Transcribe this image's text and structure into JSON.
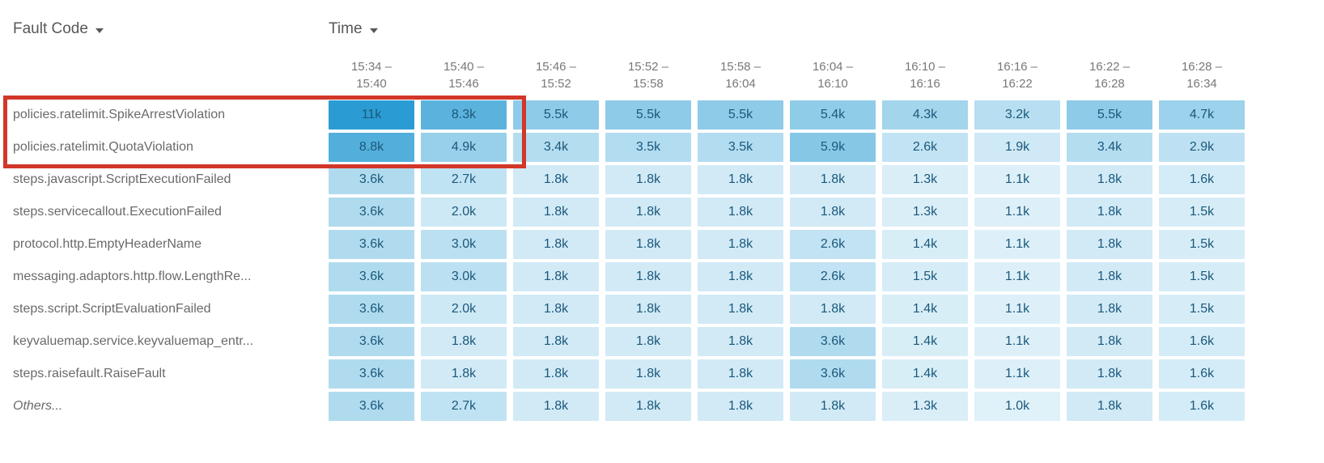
{
  "controls": {
    "row_dimension_label": "Fault Code",
    "column_dimension_label": "Time"
  },
  "chart_data": {
    "type": "heatmap",
    "x_label": "Time",
    "y_label": "Fault Code",
    "legend_position": "none",
    "columns": [
      {
        "line1": "15:34 –",
        "line2": "15:40"
      },
      {
        "line1": "15:40 –",
        "line2": "15:46"
      },
      {
        "line1": "15:46 –",
        "line2": "15:52"
      },
      {
        "line1": "15:52 –",
        "line2": "15:58"
      },
      {
        "line1": "15:58 –",
        "line2": "16:04"
      },
      {
        "line1": "16:04 –",
        "line2": "16:10"
      },
      {
        "line1": "16:10 –",
        "line2": "16:16"
      },
      {
        "line1": "16:16 –",
        "line2": "16:22"
      },
      {
        "line1": "16:22 –",
        "line2": "16:28"
      },
      {
        "line1": "16:28 –",
        "line2": "16:34"
      }
    ],
    "rows": [
      {
        "label": "policies.ratelimit.SpikeArrestViolation",
        "italic": false,
        "display": [
          "11k",
          "8.3k",
          "5.5k",
          "5.5k",
          "5.5k",
          "5.4k",
          "4.3k",
          "3.2k",
          "5.5k",
          "4.7k"
        ],
        "values_k": [
          11,
          8.3,
          5.5,
          5.5,
          5.5,
          5.4,
          4.3,
          3.2,
          5.5,
          4.7
        ]
      },
      {
        "label": "policies.ratelimit.QuotaViolation",
        "italic": false,
        "display": [
          "8.8k",
          "4.9k",
          "3.4k",
          "3.5k",
          "3.5k",
          "5.9k",
          "2.6k",
          "1.9k",
          "3.4k",
          "2.9k"
        ],
        "values_k": [
          8.8,
          4.9,
          3.4,
          3.5,
          3.5,
          5.9,
          2.6,
          1.9,
          3.4,
          2.9
        ]
      },
      {
        "label": "steps.javascript.ScriptExecutionFailed",
        "italic": false,
        "display": [
          "3.6k",
          "2.7k",
          "1.8k",
          "1.8k",
          "1.8k",
          "1.8k",
          "1.3k",
          "1.1k",
          "1.8k",
          "1.6k"
        ],
        "values_k": [
          3.6,
          2.7,
          1.8,
          1.8,
          1.8,
          1.8,
          1.3,
          1.1,
          1.8,
          1.6
        ]
      },
      {
        "label": "steps.servicecallout.ExecutionFailed",
        "italic": false,
        "display": [
          "3.6k",
          "2.0k",
          "1.8k",
          "1.8k",
          "1.8k",
          "1.8k",
          "1.3k",
          "1.1k",
          "1.8k",
          "1.5k"
        ],
        "values_k": [
          3.6,
          2.0,
          1.8,
          1.8,
          1.8,
          1.8,
          1.3,
          1.1,
          1.8,
          1.5
        ]
      },
      {
        "label": "protocol.http.EmptyHeaderName",
        "italic": false,
        "display": [
          "3.6k",
          "3.0k",
          "1.8k",
          "1.8k",
          "1.8k",
          "2.6k",
          "1.4k",
          "1.1k",
          "1.8k",
          "1.5k"
        ],
        "values_k": [
          3.6,
          3.0,
          1.8,
          1.8,
          1.8,
          2.6,
          1.4,
          1.1,
          1.8,
          1.5
        ]
      },
      {
        "label": "messaging.adaptors.http.flow.LengthRe...",
        "italic": false,
        "display": [
          "3.6k",
          "3.0k",
          "1.8k",
          "1.8k",
          "1.8k",
          "2.6k",
          "1.5k",
          "1.1k",
          "1.8k",
          "1.5k"
        ],
        "values_k": [
          3.6,
          3.0,
          1.8,
          1.8,
          1.8,
          2.6,
          1.5,
          1.1,
          1.8,
          1.5
        ]
      },
      {
        "label": "steps.script.ScriptEvaluationFailed",
        "italic": false,
        "display": [
          "3.6k",
          "2.0k",
          "1.8k",
          "1.8k",
          "1.8k",
          "1.8k",
          "1.4k",
          "1.1k",
          "1.8k",
          "1.5k"
        ],
        "values_k": [
          3.6,
          2.0,
          1.8,
          1.8,
          1.8,
          1.8,
          1.4,
          1.1,
          1.8,
          1.5
        ]
      },
      {
        "label": "keyvaluemap.service.keyvaluemap_entr...",
        "italic": false,
        "display": [
          "3.6k",
          "1.8k",
          "1.8k",
          "1.8k",
          "1.8k",
          "3.6k",
          "1.4k",
          "1.1k",
          "1.8k",
          "1.6k"
        ],
        "values_k": [
          3.6,
          1.8,
          1.8,
          1.8,
          1.8,
          3.6,
          1.4,
          1.1,
          1.8,
          1.6
        ]
      },
      {
        "label": "steps.raisefault.RaiseFault",
        "italic": false,
        "display": [
          "3.6k",
          "1.8k",
          "1.8k",
          "1.8k",
          "1.8k",
          "3.6k",
          "1.4k",
          "1.1k",
          "1.8k",
          "1.6k"
        ],
        "values_k": [
          3.6,
          1.8,
          1.8,
          1.8,
          1.8,
          3.6,
          1.4,
          1.1,
          1.8,
          1.6
        ]
      },
      {
        "label": "Others...",
        "italic": true,
        "display": [
          "3.6k",
          "2.7k",
          "1.8k",
          "1.8k",
          "1.8k",
          "1.8k",
          "1.3k",
          "1.0k",
          "1.8k",
          "1.6k"
        ],
        "values_k": [
          3.6,
          2.7,
          1.8,
          1.8,
          1.8,
          1.8,
          1.3,
          1.0,
          1.8,
          1.6
        ]
      }
    ],
    "scale": {
      "min_value_k": 1.0,
      "max_value_k": 11,
      "min_color": "#DFF1F9",
      "max_color": "#2A9CD3"
    },
    "cell_text_color": "#1B587B"
  },
  "annotation": {
    "highlight_color": "#D23729",
    "highlighted_rows": [
      "policies.ratelimit.SpikeArrestViolation",
      "policies.ratelimit.QuotaViolation"
    ],
    "highlighted_columns": [
      "15:34 – 15:40",
      "15:40 – 15:46"
    ]
  }
}
